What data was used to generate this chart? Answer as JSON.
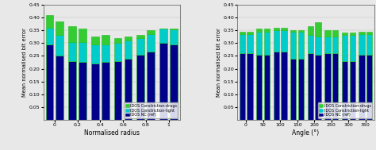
{
  "left": {
    "xlabel": "Normalised radius",
    "ylabel": "Mean normalised bit error",
    "xlim": [
      -0.5,
      11.5
    ],
    "ylim": [
      0,
      0.45
    ],
    "yticks": [
      0.05,
      0.1,
      0.15,
      0.2,
      0.25,
      0.3,
      0.35,
      0.4,
      0.45
    ],
    "xtick_labels": [
      "0",
      "0.2",
      "0.4",
      "0.6",
      "0.8",
      "1"
    ],
    "xtick_pos": [
      0.5,
      2.5,
      4.5,
      6.5,
      8.5,
      10.5
    ],
    "group_centers": [
      0.5,
      2.5,
      4.5,
      6.5,
      8.5,
      10.5
    ],
    "groups": 6,
    "bar1_nc": [
      0.295,
      0.23,
      0.22,
      0.23,
      0.255,
      0.3
    ],
    "bar1_light": [
      0.065,
      0.075,
      0.075,
      0.07,
      0.065,
      0.055
    ],
    "bar1_drugs": [
      0.05,
      0.06,
      0.03,
      0.02,
      0.01,
      0.0
    ],
    "bar2_nc": [
      0.25,
      0.225,
      0.225,
      0.24,
      0.265,
      0.295
    ],
    "bar2_light": [
      0.08,
      0.08,
      0.07,
      0.07,
      0.07,
      0.058
    ],
    "bar2_drugs": [
      0.055,
      0.05,
      0.035,
      0.015,
      0.015,
      0.002
    ]
  },
  "right": {
    "xlabel": "Angle (°)",
    "ylabel": "Mean normalised bit error",
    "xlim": [
      -0.5,
      15.5
    ],
    "ylim": [
      0,
      0.45
    ],
    "yticks": [
      0.05,
      0.1,
      0.15,
      0.2,
      0.25,
      0.3,
      0.35,
      0.4,
      0.45
    ],
    "xtick_labels": [
      "0",
      "50",
      "100",
      "150",
      "200",
      "250",
      "300",
      "350"
    ],
    "xtick_pos": [
      0.5,
      2.5,
      4.5,
      6.5,
      8.5,
      10.5,
      12.5,
      14.5
    ],
    "groups": 8,
    "bar1_nc": [
      0.26,
      0.255,
      0.265,
      0.24,
      0.26,
      0.26,
      0.23,
      0.255
    ],
    "bar1_light": [
      0.075,
      0.09,
      0.085,
      0.105,
      0.07,
      0.065,
      0.1,
      0.08
    ],
    "bar1_drugs": [
      0.01,
      0.01,
      0.01,
      0.005,
      0.035,
      0.025,
      0.01,
      0.01
    ],
    "bar2_nc": [
      0.26,
      0.255,
      0.265,
      0.24,
      0.255,
      0.26,
      0.23,
      0.255
    ],
    "bar2_light": [
      0.075,
      0.09,
      0.085,
      0.105,
      0.07,
      0.065,
      0.1,
      0.08
    ],
    "bar2_drugs": [
      0.01,
      0.01,
      0.01,
      0.005,
      0.055,
      0.025,
      0.01,
      0.01
    ]
  },
  "color_nc": "#00008B",
  "color_light": "#00CCCC",
  "color_drugs": "#33CC33",
  "color_edge": "#22BB22",
  "legend_labels": [
    "IDOS Constriction-drugs",
    "IDOS Constriction-light",
    "IDOS NC (ref)"
  ],
  "bar_width": 0.75,
  "bg_color": "#e8e8e8"
}
